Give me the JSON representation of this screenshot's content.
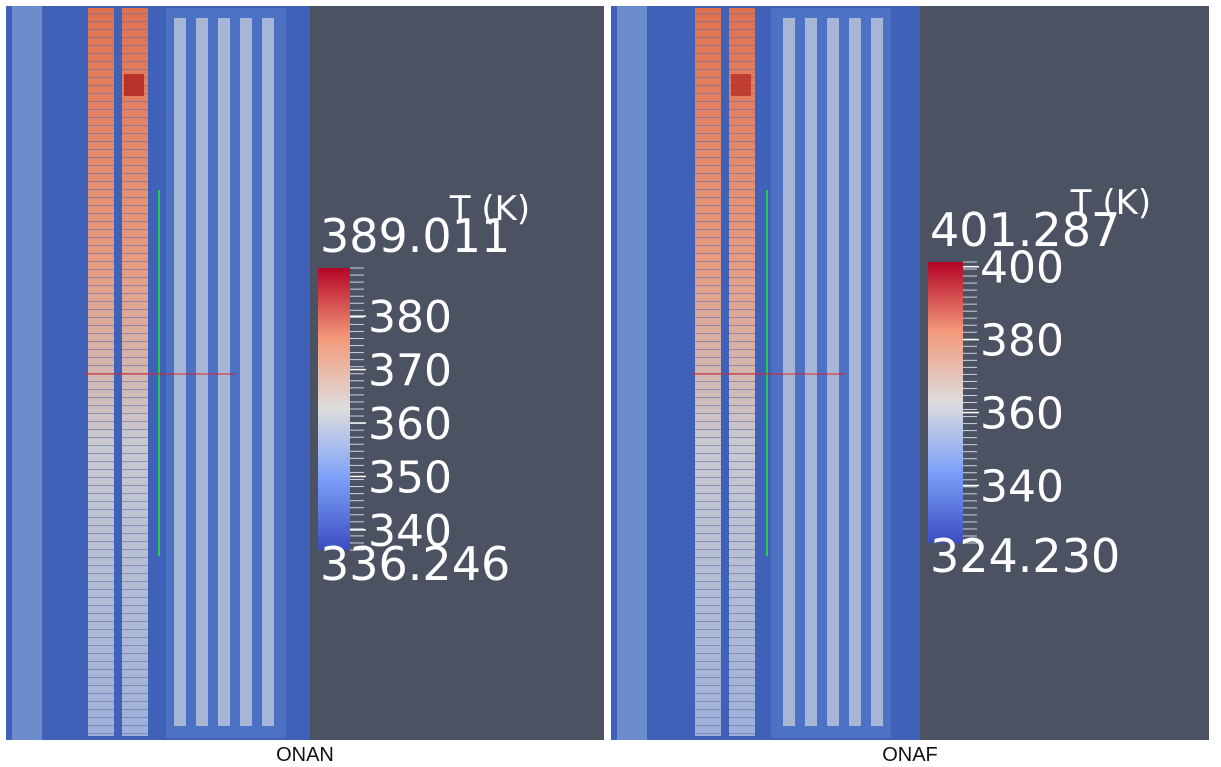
{
  "panels": [
    {
      "caption": "ONAN",
      "colorbar": {
        "title": "T (K)",
        "max": "389.011",
        "min": "336.246",
        "ticks": [
          "340",
          "350",
          "360",
          "370",
          "380"
        ]
      }
    },
    {
      "caption": "ONAF",
      "colorbar": {
        "title": "T (K)",
        "max": "401.287",
        "min": "324.230",
        "ticks": [
          "340",
          "360",
          "380",
          "400"
        ]
      }
    }
  ]
}
